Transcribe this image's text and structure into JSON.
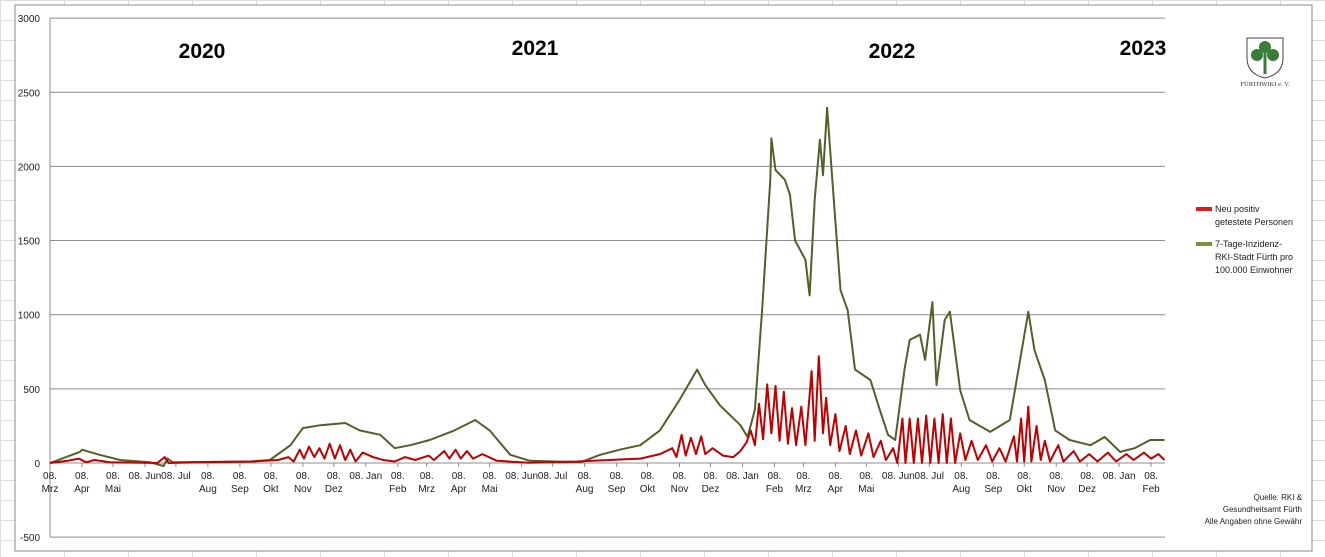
{
  "chart_data": {
    "type": "line",
    "title": "",
    "xlabel": "",
    "ylabel": "",
    "ylim": [
      -500,
      3000
    ],
    "yticks": [
      -500,
      0,
      500,
      1000,
      1500,
      2000,
      2500,
      3000
    ],
    "grid": true,
    "legend_position": "right",
    "year_labels": [
      "2020",
      "2021",
      "2022",
      "2023"
    ],
    "x_tick_labels": [
      "08. Mrz",
      "08. Apr",
      "08. Mai",
      "08. Jun",
      "08. Jul",
      "08. Aug",
      "08. Sep",
      "08. Okt",
      "08. Nov",
      "08. Dez",
      "08. Jan",
      "08. Feb",
      "08. Mrz",
      "08. Apr",
      "08. Mai",
      "08. Jun",
      "08. Jul",
      "08. Aug",
      "08. Sep",
      "08. Okt",
      "08. Nov",
      "08. Dez",
      "08. Jan",
      "08. Feb",
      "08. Mrz",
      "08. Apr",
      "08. Mai",
      "08. Jun",
      "08. Jul",
      "08. Aug",
      "08. Sep",
      "08. Okt",
      "08. Nov",
      "08. Dez",
      "08. Jan",
      "08. Feb"
    ],
    "x_tick_dates_start": "2020-03-08",
    "series": [
      {
        "name": "Neu positiv getestete Personen",
        "color": "#c00000",
        "legend_color": "#e31a1c",
        "points": [
          [
            "2020-03-08",
            0
          ],
          [
            "2020-03-25",
            15
          ],
          [
            "2020-04-05",
            30
          ],
          [
            "2020-04-12",
            5
          ],
          [
            "2020-04-20",
            20
          ],
          [
            "2020-05-05",
            5
          ],
          [
            "2020-06-20",
            0
          ],
          [
            "2020-06-27",
            40
          ],
          [
            "2020-07-01",
            0
          ],
          [
            "2020-08-01",
            5
          ],
          [
            "2020-09-20",
            10
          ],
          [
            "2020-10-15",
            20
          ],
          [
            "2020-10-25",
            40
          ],
          [
            "2020-10-30",
            10
          ],
          [
            "2020-11-05",
            90
          ],
          [
            "2020-11-09",
            30
          ],
          [
            "2020-11-14",
            110
          ],
          [
            "2020-11-19",
            40
          ],
          [
            "2020-11-24",
            100
          ],
          [
            "2020-11-29",
            30
          ],
          [
            "2020-12-04",
            130
          ],
          [
            "2020-12-09",
            30
          ],
          [
            "2020-12-14",
            120
          ],
          [
            "2020-12-19",
            20
          ],
          [
            "2020-12-24",
            90
          ],
          [
            "2020-12-29",
            10
          ],
          [
            "2021-01-05",
            70
          ],
          [
            "2021-01-15",
            40
          ],
          [
            "2021-01-25",
            20
          ],
          [
            "2021-02-05",
            10
          ],
          [
            "2021-02-15",
            40
          ],
          [
            "2021-02-25",
            20
          ],
          [
            "2021-03-10",
            50
          ],
          [
            "2021-03-15",
            20
          ],
          [
            "2021-03-25",
            80
          ],
          [
            "2021-03-30",
            30
          ],
          [
            "2021-04-05",
            90
          ],
          [
            "2021-04-10",
            30
          ],
          [
            "2021-04-16",
            80
          ],
          [
            "2021-04-22",
            30
          ],
          [
            "2021-05-01",
            60
          ],
          [
            "2021-05-15",
            15
          ],
          [
            "2021-06-15",
            2
          ],
          [
            "2021-08-01",
            10
          ],
          [
            "2021-09-01",
            20
          ],
          [
            "2021-10-01",
            30
          ],
          [
            "2021-10-20",
            60
          ],
          [
            "2021-11-01",
            100
          ],
          [
            "2021-11-05",
            40
          ],
          [
            "2021-11-10",
            190
          ],
          [
            "2021-11-14",
            50
          ],
          [
            "2021-11-19",
            170
          ],
          [
            "2021-11-24",
            60
          ],
          [
            "2021-11-29",
            180
          ],
          [
            "2021-12-03",
            60
          ],
          [
            "2021-12-10",
            100
          ],
          [
            "2021-12-20",
            50
          ],
          [
            "2021-12-30",
            40
          ],
          [
            "2022-01-06",
            80
          ],
          [
            "2022-01-12",
            140
          ],
          [
            "2022-01-16",
            220
          ],
          [
            "2022-01-20",
            120
          ],
          [
            "2022-01-24",
            400
          ],
          [
            "2022-01-28",
            160
          ],
          [
            "2022-02-01",
            530
          ],
          [
            "2022-02-05",
            200
          ],
          [
            "2022-02-09",
            520
          ],
          [
            "2022-02-13",
            150
          ],
          [
            "2022-02-17",
            480
          ],
          [
            "2022-02-21",
            130
          ],
          [
            "2022-02-25",
            370
          ],
          [
            "2022-03-01",
            120
          ],
          [
            "2022-03-06",
            380
          ],
          [
            "2022-03-10",
            120
          ],
          [
            "2022-03-16",
            620
          ],
          [
            "2022-03-19",
            150
          ],
          [
            "2022-03-23",
            720
          ],
          [
            "2022-03-27",
            200
          ],
          [
            "2022-03-30",
            440
          ],
          [
            "2022-04-03",
            120
          ],
          [
            "2022-04-08",
            330
          ],
          [
            "2022-04-12",
            80
          ],
          [
            "2022-04-18",
            250
          ],
          [
            "2022-04-22",
            60
          ],
          [
            "2022-04-28",
            220
          ],
          [
            "2022-05-03",
            50
          ],
          [
            "2022-05-10",
            200
          ],
          [
            "2022-05-15",
            40
          ],
          [
            "2022-05-22",
            150
          ],
          [
            "2022-05-27",
            20
          ],
          [
            "2022-06-03",
            100
          ],
          [
            "2022-06-07",
            0
          ],
          [
            "2022-06-12",
            300
          ],
          [
            "2022-06-15",
            0
          ],
          [
            "2022-06-19",
            300
          ],
          [
            "2022-06-23",
            0
          ],
          [
            "2022-06-27",
            300
          ],
          [
            "2022-07-01",
            0
          ],
          [
            "2022-07-05",
            320
          ],
          [
            "2022-07-09",
            0
          ],
          [
            "2022-07-13",
            300
          ],
          [
            "2022-07-17",
            0
          ],
          [
            "2022-07-21",
            330
          ],
          [
            "2022-07-25",
            0
          ],
          [
            "2022-07-29",
            300
          ],
          [
            "2022-08-02",
            0
          ],
          [
            "2022-08-07",
            200
          ],
          [
            "2022-08-12",
            20
          ],
          [
            "2022-08-18",
            150
          ],
          [
            "2022-08-24",
            20
          ],
          [
            "2022-09-01",
            120
          ],
          [
            "2022-09-07",
            10
          ],
          [
            "2022-09-14",
            100
          ],
          [
            "2022-09-20",
            10
          ],
          [
            "2022-09-28",
            180
          ],
          [
            "2022-10-01",
            10
          ],
          [
            "2022-10-05",
            300
          ],
          [
            "2022-10-08",
            10
          ],
          [
            "2022-10-12",
            380
          ],
          [
            "2022-10-15",
            10
          ],
          [
            "2022-10-20",
            250
          ],
          [
            "2022-10-24",
            20
          ],
          [
            "2022-10-28",
            150
          ],
          [
            "2022-11-02",
            10
          ],
          [
            "2022-11-10",
            120
          ],
          [
            "2022-11-15",
            10
          ],
          [
            "2022-11-25",
            80
          ],
          [
            "2022-12-01",
            10
          ],
          [
            "2022-12-10",
            60
          ],
          [
            "2022-12-18",
            10
          ],
          [
            "2022-12-28",
            70
          ],
          [
            "2023-01-05",
            10
          ],
          [
            "2023-01-15",
            60
          ],
          [
            "2023-01-22",
            20
          ],
          [
            "2023-02-01",
            70
          ],
          [
            "2023-02-08",
            30
          ],
          [
            "2023-02-15",
            60
          ],
          [
            "2023-02-21",
            20
          ]
        ]
      },
      {
        "name": "7-Tage-Inzidenz-RKI-Stadt Fürth pro 100.000 Einwohner",
        "color": "#4f6228",
        "legend_color": "#77933c",
        "points": [
          [
            "2020-03-08",
            0
          ],
          [
            "2020-04-06",
            75
          ],
          [
            "2020-04-08",
            90
          ],
          [
            "2020-04-25",
            55
          ],
          [
            "2020-05-15",
            20
          ],
          [
            "2020-06-13",
            5
          ],
          [
            "2020-06-26",
            -20
          ],
          [
            "2020-06-30",
            30
          ],
          [
            "2020-07-05",
            5
          ],
          [
            "2020-09-18",
            10
          ],
          [
            "2020-10-07",
            20
          ],
          [
            "2020-10-27",
            120
          ],
          [
            "2020-11-08",
            235
          ],
          [
            "2020-11-25",
            255
          ],
          [
            "2020-12-19",
            270
          ],
          [
            "2021-01-02",
            220
          ],
          [
            "2021-01-22",
            190
          ],
          [
            "2021-02-05",
            100
          ],
          [
            "2021-02-20",
            120
          ],
          [
            "2021-03-11",
            155
          ],
          [
            "2021-04-04",
            220
          ],
          [
            "2021-04-24",
            290
          ],
          [
            "2021-05-08",
            220
          ],
          [
            "2021-05-28",
            55
          ],
          [
            "2021-06-16",
            15
          ],
          [
            "2021-08-04",
            5
          ],
          [
            "2021-08-23",
            55
          ],
          [
            "2021-09-11",
            90
          ],
          [
            "2021-10-01",
            120
          ],
          [
            "2021-10-20",
            220
          ],
          [
            "2021-11-08",
            425
          ],
          [
            "2021-11-25",
            630
          ],
          [
            "2021-12-03",
            525
          ],
          [
            "2021-12-17",
            390
          ],
          [
            "2022-01-06",
            255
          ],
          [
            "2022-01-13",
            175
          ],
          [
            "2022-01-20",
            360
          ],
          [
            "2022-01-27",
            1030
          ],
          [
            "2022-02-04",
            1910
          ],
          [
            "2022-02-05",
            2190
          ],
          [
            "2022-02-09",
            1975
          ],
          [
            "2022-02-18",
            1910
          ],
          [
            "2022-02-23",
            1810
          ],
          [
            "2022-02-28",
            1500
          ],
          [
            "2022-03-05",
            1435
          ],
          [
            "2022-03-10",
            1370
          ],
          [
            "2022-03-14",
            1130
          ],
          [
            "2022-03-19",
            1775
          ],
          [
            "2022-03-24",
            2180
          ],
          [
            "2022-03-27",
            1940
          ],
          [
            "2022-03-31",
            2395
          ],
          [
            "2022-04-05",
            1910
          ],
          [
            "2022-04-13",
            1165
          ],
          [
            "2022-04-20",
            1030
          ],
          [
            "2022-04-27",
            630
          ],
          [
            "2022-05-12",
            560
          ],
          [
            "2022-05-21",
            360
          ],
          [
            "2022-05-29",
            190
          ],
          [
            "2022-06-05",
            155
          ],
          [
            "2022-06-14",
            630
          ],
          [
            "2022-06-19",
            830
          ],
          [
            "2022-06-29",
            865
          ],
          [
            "2022-07-04",
            695
          ],
          [
            "2022-07-11",
            1085
          ],
          [
            "2022-07-15",
            525
          ],
          [
            "2022-07-23",
            965
          ],
          [
            "2022-07-28",
            1020
          ],
          [
            "2022-08-07",
            490
          ],
          [
            "2022-08-16",
            290
          ],
          [
            "2022-09-05",
            210
          ],
          [
            "2022-09-24",
            290
          ],
          [
            "2022-10-04",
            695
          ],
          [
            "2022-10-12",
            1020
          ],
          [
            "2022-10-18",
            760
          ],
          [
            "2022-10-28",
            560
          ],
          [
            "2022-11-07",
            220
          ],
          [
            "2022-11-21",
            155
          ],
          [
            "2022-12-11",
            120
          ],
          [
            "2022-12-25",
            175
          ],
          [
            "2023-01-09",
            75
          ],
          [
            "2023-01-23",
            100
          ],
          [
            "2023-02-07",
            155
          ],
          [
            "2023-02-21",
            155
          ]
        ]
      }
    ]
  },
  "legend": {
    "series_1": [
      "Neu positiv",
      "getestete Personen"
    ],
    "series_2": [
      "7-Tage-Inzidenz-",
      "RKI-Stadt Fürth pro",
      "100.000 Einwohner"
    ]
  },
  "logo": {
    "text": "FÜRTHWIKI e. V.",
    "color": "#3a7d3a"
  },
  "source": [
    "Quelle: RKI &",
    "Gesundheitsamt Fürth",
    "Alle Angaben ohne Gewähr"
  ]
}
